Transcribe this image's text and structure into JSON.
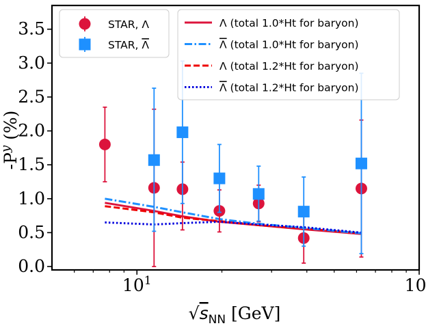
{
  "chart_data": {
    "type": "scatter",
    "title": "",
    "xlabel": "√s_NN [GeV]",
    "xlabel_parts": {
      "sqrt": "√",
      "s": "s",
      "sub": "NN",
      "unit": "[GeV]"
    },
    "ylabel": "-P^y (%)",
    "ylabel_parts": {
      "base": "-P",
      "sup": "y",
      "unit": "(%)"
    },
    "x_scale": "log",
    "xlim": [
      5.0,
      100
    ],
    "ylim": [
      -0.05,
      3.85
    ],
    "grid": false,
    "legend_placement": "top",
    "x_ticks": [
      {
        "value": 10,
        "base": "10",
        "exp": "1"
      },
      {
        "value": 100,
        "base": "10",
        "exp": "2"
      }
    ],
    "y_ticks": [
      {
        "value": 0.0,
        "label": "0.0"
      },
      {
        "value": 0.5,
        "label": "0.5"
      },
      {
        "value": 1.0,
        "label": "1.0"
      },
      {
        "value": 1.5,
        "label": "1.5"
      },
      {
        "value": 2.0,
        "label": "2.0"
      },
      {
        "value": 2.5,
        "label": "2.5"
      },
      {
        "value": 3.0,
        "label": "3.0"
      },
      {
        "value": 3.5,
        "label": "3.5"
      }
    ],
    "points": [
      {
        "name": "STAR, Λ",
        "marker": "circle",
        "color": "#dc143c",
        "x": [
          7.7,
          11.5,
          14.5,
          19.6,
          27,
          39,
          62.4
        ],
        "y": [
          1.8,
          1.16,
          1.14,
          0.82,
          0.93,
          0.42,
          1.15
        ],
        "err_lo": [
          0.55,
          1.16,
          0.6,
          0.31,
          0.27,
          0.37,
          1.01
        ],
        "err_hi": [
          0.55,
          1.16,
          0.4,
          0.31,
          0.27,
          0.37,
          1.01
        ]
      },
      {
        "name": "STAR, Λ̄",
        "marker": "square",
        "color": "#1e90ff",
        "x": [
          11.5,
          14.5,
          19.6,
          27,
          39,
          62.4
        ],
        "y": [
          1.57,
          1.98,
          1.3,
          1.07,
          0.81,
          1.52
        ],
        "err_lo": [
          1.05,
          1.05,
          0.5,
          0.4,
          0.51,
          1.33
        ],
        "err_hi": [
          1.06,
          1.05,
          0.5,
          0.41,
          0.51,
          1.33
        ]
      }
    ],
    "series": [
      {
        "name": "Λ (total 1.0*Ht for baryon)",
        "color": "#dc143c",
        "style": "solid",
        "x": [
          7.7,
          11.5,
          14.5,
          19.6,
          27,
          39,
          62.4
        ],
        "y": [
          0.94,
          0.82,
          0.74,
          0.66,
          0.61,
          0.55,
          0.48
        ]
      },
      {
        "name": "Λ̄ (total 1.0*Ht for baryon)",
        "color": "#1e90ff",
        "style": "dashdot",
        "x": [
          7.7,
          11.5,
          14.5,
          19.6,
          27,
          39,
          62.4
        ],
        "y": [
          1.0,
          0.88,
          0.8,
          0.7,
          0.63,
          0.57,
          0.49
        ]
      },
      {
        "name": "Λ (total 1.2*Ht for baryon)",
        "color": "#ee0000",
        "style": "dashed",
        "x": [
          7.7,
          11.5,
          14.5,
          19.6,
          27,
          39,
          62.4
        ],
        "y": [
          0.89,
          0.8,
          0.72,
          0.67,
          0.61,
          0.56,
          0.49
        ]
      },
      {
        "name": "Λ̄ (total 1.2*Ht for baryon)",
        "color": "#0000dd",
        "style": "dotted",
        "x": [
          7.7,
          11.5,
          14.5,
          19.6,
          27,
          39,
          62.4
        ],
        "y": [
          0.65,
          0.62,
          0.64,
          0.66,
          0.62,
          0.58,
          0.5
        ]
      }
    ],
    "legend_points": [
      {
        "label": "STAR, Λ",
        "label_base": "STAR, ",
        "label_sym": "Λ",
        "overline": false,
        "marker": "circle",
        "color": "#dc143c"
      },
      {
        "label": "STAR, Λ̄",
        "label_base": "STAR, ",
        "label_sym": "Λ",
        "overline": true,
        "marker": "square",
        "color": "#1e90ff"
      }
    ],
    "legend_lines": [
      {
        "label": "Λ (total 1.0*Ht for baryon)",
        "label_sym": "Λ",
        "label_rest": " (total 1.0*Ht for baryon)",
        "overline": false,
        "color": "#dc143c",
        "style": "solid"
      },
      {
        "label": "Λ̄ (total 1.0*Ht for baryon)",
        "label_sym": "Λ",
        "label_rest": " (total 1.0*Ht for baryon)",
        "overline": true,
        "color": "#1e90ff",
        "style": "dashdot"
      },
      {
        "label": "Λ (total 1.2*Ht for baryon)",
        "label_sym": "Λ",
        "label_rest": " (total 1.2*Ht for baryon)",
        "overline": false,
        "color": "#ee0000",
        "style": "dashed"
      },
      {
        "label": "Λ̄ (total 1.2*Ht for baryon)",
        "label_sym": "Λ",
        "label_rest": " (total 1.2*Ht for baryon)",
        "overline": true,
        "color": "#0000dd",
        "style": "dotted"
      }
    ]
  }
}
